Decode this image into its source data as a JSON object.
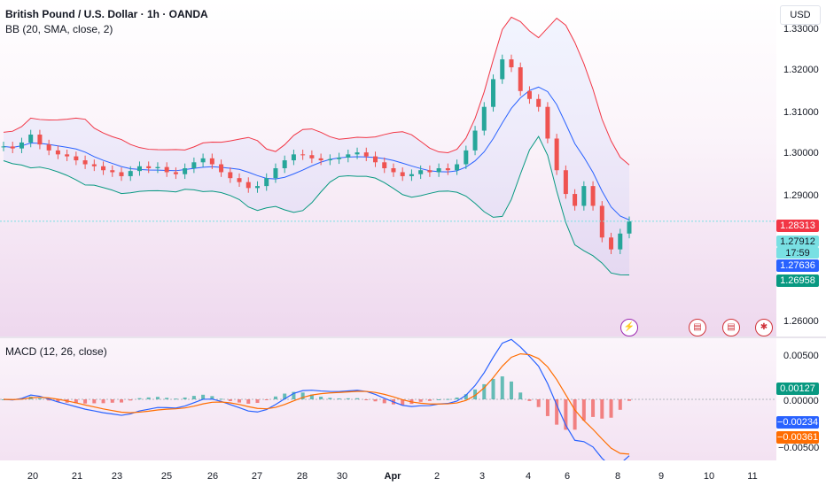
{
  "header": {
    "symbol_title": "British Pound / U.S. Dollar · 1h · OANDA",
    "bb_label": "BB (20, SMA, close, 2)",
    "currency": "USD"
  },
  "macd": {
    "label": "MACD (12, 26, close)"
  },
  "price_axis": {
    "ticks": [
      "1.33000",
      "1.32000",
      "1.31000",
      "1.30000",
      "1.29000",
      "1.26000"
    ],
    "price_labels": [
      {
        "value": "1.28313",
        "color": "#f23645"
      },
      {
        "value": "1.27912",
        "color": "#79e0e3"
      },
      {
        "value": "17:59",
        "color": "#79e0e3"
      },
      {
        "value": "1.27636",
        "color": "#2962ff"
      },
      {
        "value": "1.26958",
        "color": "#089981"
      }
    ]
  },
  "macd_axis": {
    "ticks": [
      "0.00500",
      "0.00000",
      "−0.00500"
    ],
    "labels": [
      {
        "value": "0.00127",
        "color": "#089981"
      },
      {
        "value": "−0.00234",
        "color": "#2962ff"
      },
      {
        "value": "−0.00361",
        "color": "#ff6d00"
      }
    ]
  },
  "time_axis": [
    "20",
    "21",
    "23",
    "25",
    "26",
    "27",
    "28",
    "30",
    "Apr",
    "2",
    "3",
    "4",
    "6",
    "8",
    "9",
    "10",
    "11"
  ],
  "events": [
    {
      "icon": "lightning-icon",
      "glyph": "⚡"
    },
    {
      "icon": "us-flag-icon",
      "glyph": "▤"
    },
    {
      "icon": "us-flag-icon",
      "glyph": "▤"
    },
    {
      "icon": "uk-flag-icon",
      "glyph": "✱"
    }
  ],
  "colors": {
    "up": "#26a69a",
    "down": "#ef5350",
    "bb_upper": "#f23645",
    "bb_lower": "#089981",
    "bb_basis": "#2962ff",
    "macd_line": "#2962ff",
    "signal_line": "#ff6d00"
  },
  "chart_data": {
    "type": "candlestick",
    "price_ylim": [
      1.25,
      1.335
    ],
    "close": [
      1.298,
      1.2975,
      1.299,
      1.301,
      1.2985,
      1.297,
      1.296,
      1.2955,
      1.2945,
      1.2935,
      1.293,
      1.292,
      1.2915,
      1.2905,
      1.2918,
      1.293,
      1.2925,
      1.2928,
      1.2915,
      1.291,
      1.2925,
      1.294,
      1.295,
      1.2935,
      1.2915,
      1.29,
      1.289,
      1.2875,
      1.288,
      1.29,
      1.2925,
      1.2945,
      1.296,
      1.2958,
      1.295,
      1.2945,
      1.2948,
      1.2952,
      1.296,
      1.2965,
      1.2955,
      1.294,
      1.2925,
      1.2915,
      1.2905,
      1.291,
      1.292,
      1.2915,
      1.2925,
      1.292,
      1.2935,
      1.297,
      1.302,
      1.308,
      1.315,
      1.32,
      1.318,
      1.312,
      1.31,
      1.308,
      1.3,
      1.292,
      1.286,
      1.283,
      1.288,
      1.283,
      1.275,
      1.272,
      1.276,
      1.2791
    ]
  }
}
